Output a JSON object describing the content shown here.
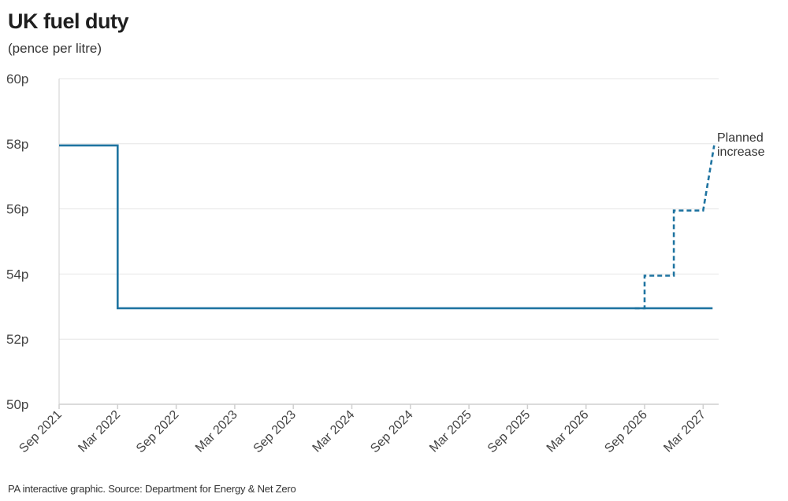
{
  "title": "UK fuel duty",
  "subtitle": "(pence per litre)",
  "source": "PA interactive graphic. Source: Department for Energy & Net Zero",
  "colors": {
    "line": "#1f74a1",
    "grid": "#e6e6e6",
    "axis": "#cfcfcf"
  },
  "chart_data": {
    "type": "line",
    "title": "UK fuel duty",
    "subtitle": "(pence per litre)",
    "xlabel": "",
    "ylabel": "",
    "ylim": [
      50,
      60
    ],
    "yticks": [
      50,
      52,
      54,
      56,
      58,
      60
    ],
    "ytick_labels": [
      "50p",
      "52p",
      "54p",
      "56p",
      "58p",
      "60p"
    ],
    "xlim": [
      "2021-09",
      "2027-04"
    ],
    "xticks": [
      "2021-09",
      "2022-03",
      "2022-09",
      "2023-03",
      "2023-09",
      "2024-03",
      "2024-09",
      "2025-03",
      "2025-09",
      "2026-03",
      "2026-09",
      "2027-03"
    ],
    "xtick_labels": [
      "Sep 2021",
      "Mar 2022",
      "Sep 2022",
      "Mar 2023",
      "Sep 2023",
      "Mar 2024",
      "Sep 2024",
      "Mar 2025",
      "Sep 2025",
      "Mar 2026",
      "Sep 2026",
      "Mar 2027"
    ],
    "grid": true,
    "step": true,
    "series": [
      {
        "style": "solid",
        "x": [
          "2021-09",
          "2022-03",
          "2022-03",
          "2027-03"
        ],
        "y": [
          57.95,
          57.95,
          52.95,
          52.95
        ]
      },
      {
        "style": "dashed",
        "x": [
          "2026-08",
          "2026-09",
          "2026-09",
          "2026-12",
          "2026-12",
          "2027-03",
          "2027-03",
          "2027-03"
        ],
        "y": [
          52.95,
          52.95,
          53.95,
          53.95,
          55.95,
          55.95,
          57.95,
          57.95
        ]
      }
    ],
    "annotations": [
      {
        "text": "Planned",
        "x": "2027-03",
        "y": 58.1
      },
      {
        "text": "increase",
        "x": "2027-03",
        "y": 57.7
      }
    ]
  }
}
